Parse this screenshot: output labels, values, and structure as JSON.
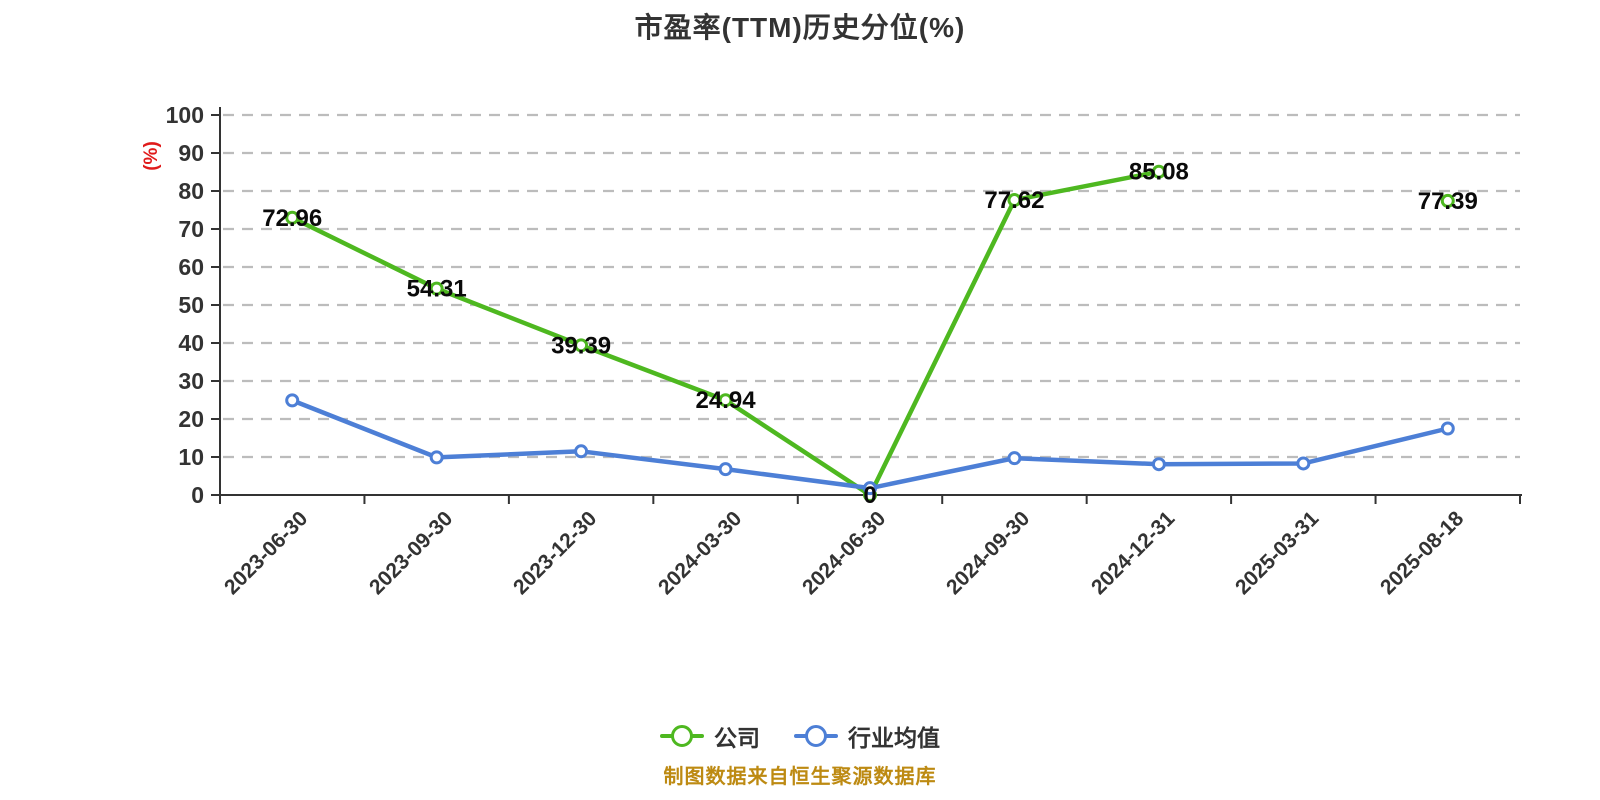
{
  "title": "市盈率(TTM)历史分位(%)",
  "footer": "制图数据来自恒生聚源数据库",
  "colors": {
    "company": "#4eb820",
    "industry": "#4d7fd6",
    "grid": "#bcbcbc",
    "axis": "#333333",
    "tick_text": "#333333",
    "title_text": "#333333",
    "data_label": "#0a0a0a",
    "unit_text": "#e01b1b",
    "footer_text": "#bd8a12",
    "marker_fill": "#ffffff"
  },
  "y_axis": {
    "unit": "(%)"
  },
  "legend": {
    "items": [
      {
        "label": "公司",
        "color": "#4eb820"
      },
      {
        "label": "行业均值",
        "color": "#4d7fd6"
      }
    ]
  },
  "chart_data": {
    "type": "line",
    "title": "市盈率(TTM)历史分位(%)",
    "xlabel": "",
    "ylabel": "(%)",
    "ylim": [
      0,
      100
    ],
    "ytick_step": 10,
    "grid": "dashed-horizontal",
    "legend_position": "bottom-center",
    "categories": [
      "2023-06-30",
      "2023-09-30",
      "2023-12-30",
      "2024-03-30",
      "2024-06-30",
      "2024-09-30",
      "2024-12-31",
      "2025-03-31",
      "2025-08-18"
    ],
    "series": [
      {
        "name": "公司",
        "color": "#4eb820",
        "values": [
          72.96,
          54.31,
          39.39,
          24.94,
          0,
          77.62,
          85.08,
          null,
          77.39
        ],
        "point_labels": [
          "72.96",
          "54.31",
          "39.39",
          "24.94",
          "0",
          "77.62",
          "85.08",
          "",
          "77.39"
        ]
      },
      {
        "name": "行业均值",
        "color": "#4d7fd6",
        "values": [
          24.9,
          9.9,
          11.5,
          6.8,
          1.8,
          9.7,
          8.1,
          8.3,
          17.5
        ],
        "point_labels": [
          "",
          "",
          "",
          "",
          "",
          "",
          "",
          "",
          ""
        ]
      }
    ]
  }
}
